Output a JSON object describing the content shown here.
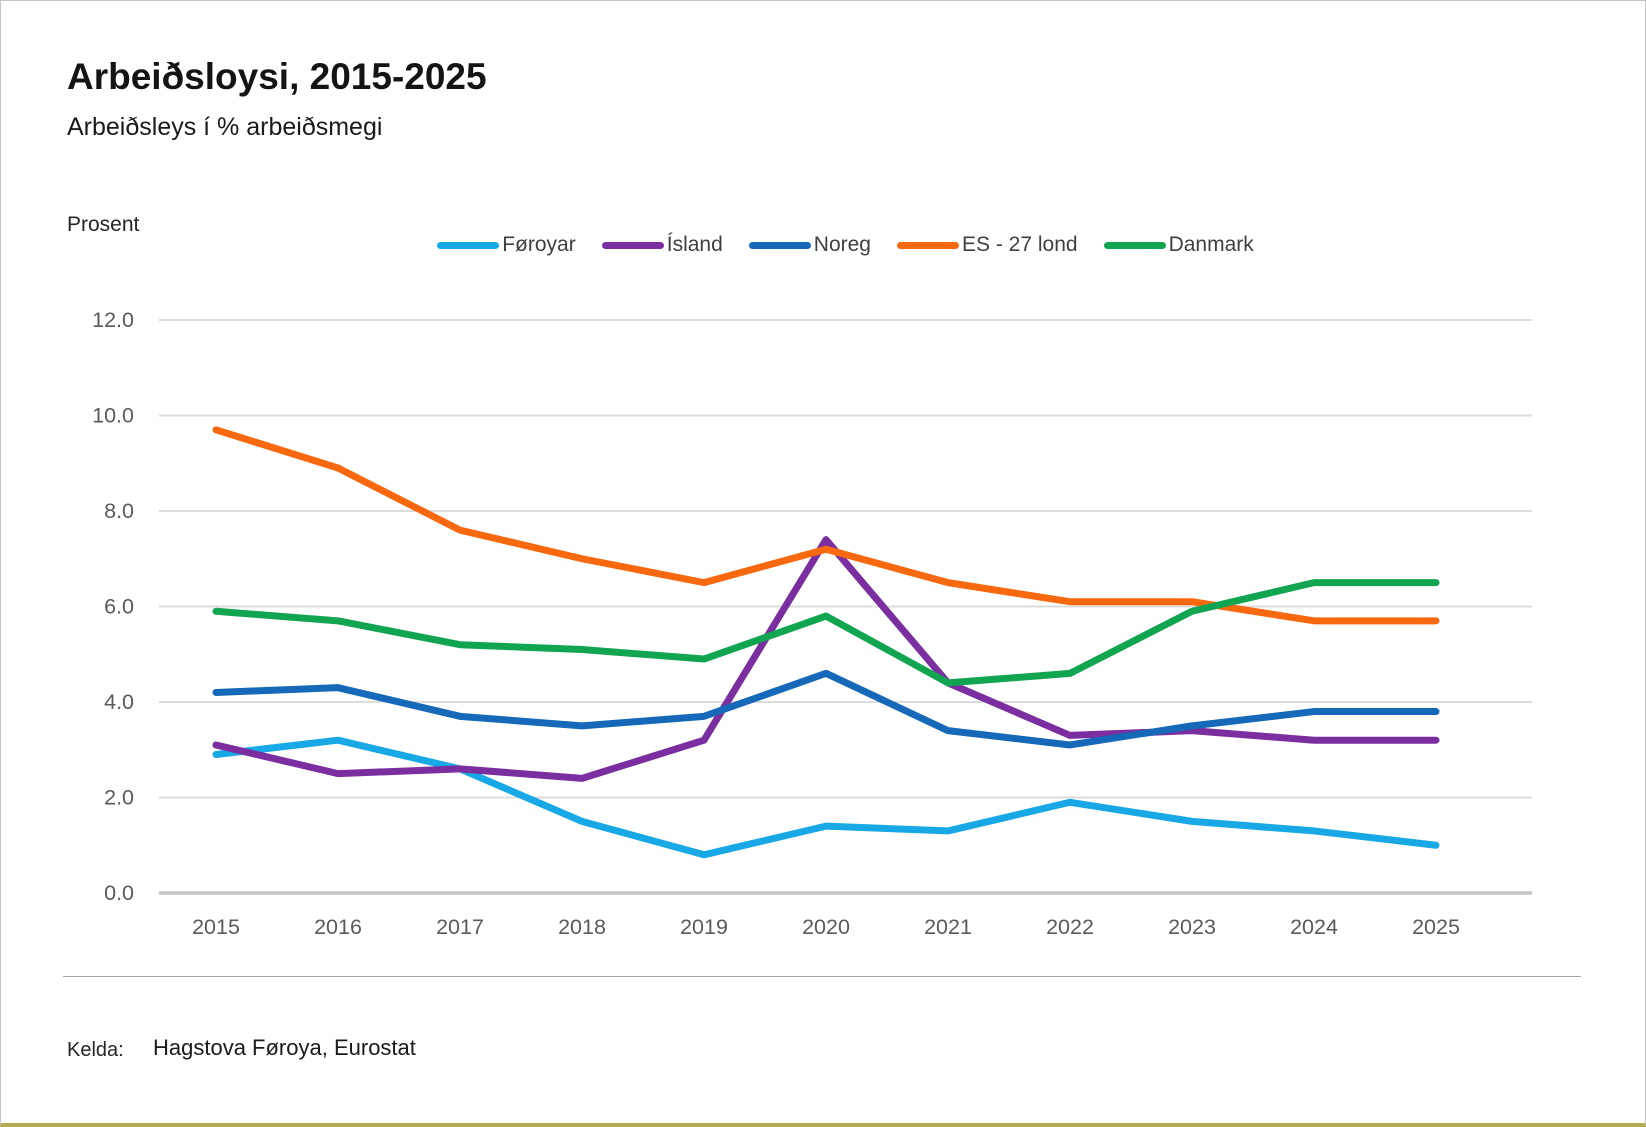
{
  "header": {
    "title": "Arbeiðsloysi, 2015-2025",
    "subtitle": "Arbeiðsleys í % arbeiðsmegi",
    "unit_label": "Prosent"
  },
  "footer": {
    "source_label": "Kelda:",
    "source_value": "Hagstova Føroya, Eurostat"
  },
  "chart_data": {
    "type": "line",
    "title": "Arbeiðsloysi, 2015-2025",
    "ylabel": "Prosent",
    "x": [
      2015,
      2016,
      2017,
      2018,
      2019,
      2020,
      2021,
      2022,
      2023,
      2024,
      2025
    ],
    "x_tick_labels": [
      "2015",
      "2016",
      "2017",
      "2018",
      "2019",
      "2020",
      "2021",
      "2022",
      "2023",
      "2024",
      "2025"
    ],
    "y_tick_labels": [
      "0.0",
      "2.0",
      "4.0",
      "6.0",
      "8.0",
      "10.0",
      "12.0"
    ],
    "ylim": [
      0,
      12
    ],
    "ytick_step": 2,
    "grid": "horizontal",
    "legend_position": "top",
    "series": [
      {
        "name": "Føroyar",
        "color": "#18a8e6",
        "values": [
          2.9,
          3.2,
          2.6,
          1.5,
          0.8,
          1.4,
          1.3,
          1.9,
          1.5,
          1.3,
          1.0
        ]
      },
      {
        "name": "Ísland",
        "color": "#7a2ea0",
        "values": [
          3.1,
          2.5,
          2.6,
          2.4,
          3.2,
          7.4,
          4.4,
          3.3,
          3.4,
          3.2,
          3.2
        ]
      },
      {
        "name": "Noreg",
        "color": "#1668b8",
        "values": [
          4.2,
          4.3,
          3.7,
          3.5,
          3.7,
          4.6,
          3.4,
          3.1,
          3.5,
          3.8,
          3.8
        ]
      },
      {
        "name": "ES - 27 lond",
        "color": "#f8690f",
        "values": [
          9.7,
          8.9,
          7.6,
          7.0,
          6.5,
          7.2,
          6.5,
          6.1,
          6.1,
          5.7,
          5.7
        ]
      },
      {
        "name": "Danmark",
        "color": "#12a551",
        "values": [
          5.9,
          5.7,
          5.2,
          5.1,
          4.9,
          5.8,
          4.4,
          4.6,
          5.9,
          6.5,
          6.5
        ]
      }
    ],
    "style": {
      "gridline_color": "#dcdcdc",
      "baseline_color": "#c6c6c6",
      "tick_label_color": "#5a5a5a",
      "line_width": 7
    }
  }
}
